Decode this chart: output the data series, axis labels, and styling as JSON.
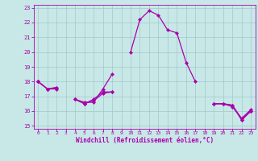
{
  "x_values": [
    0,
    1,
    2,
    3,
    4,
    5,
    6,
    7,
    8,
    9,
    10,
    11,
    12,
    13,
    14,
    15,
    16,
    17,
    18,
    19,
    20,
    21,
    22,
    23
  ],
  "line1": [
    18.0,
    17.5,
    17.6,
    null,
    16.8,
    16.6,
    16.6,
    17.5,
    18.5,
    null,
    20.0,
    22.2,
    22.8,
    22.5,
    21.5,
    21.3,
    19.3,
    18.0,
    null,
    16.5,
    16.5,
    16.4,
    15.4,
    16.0
  ],
  "line2": [
    18.0,
    17.5,
    17.6,
    null,
    16.8,
    16.5,
    16.8,
    17.3,
    17.3,
    null,
    null,
    null,
    null,
    null,
    null,
    null,
    null,
    null,
    null,
    16.5,
    16.5,
    16.4,
    15.5,
    16.1
  ],
  "line3": [
    18.0,
    17.5,
    17.5,
    null,
    16.8,
    16.5,
    16.7,
    17.2,
    17.3,
    null,
    null,
    null,
    null,
    null,
    null,
    null,
    null,
    null,
    null,
    16.5,
    16.5,
    16.3,
    15.5,
    16.0
  ],
  "line4": [
    18.0,
    null,
    null,
    null,
    null,
    16.5,
    null,
    null,
    null,
    null,
    null,
    null,
    null,
    null,
    null,
    null,
    null,
    null,
    null,
    null,
    null,
    null,
    15.4,
    16.0
  ],
  "xlabel": "Windchill (Refroidissement éolien,°C)",
  "xlim": [
    -0.5,
    23.5
  ],
  "ylim": [
    14.8,
    23.2
  ],
  "yticks": [
    15,
    16,
    17,
    18,
    19,
    20,
    21,
    22,
    23
  ],
  "xticks": [
    0,
    1,
    2,
    3,
    4,
    5,
    6,
    7,
    8,
    9,
    10,
    11,
    12,
    13,
    14,
    15,
    16,
    17,
    18,
    19,
    20,
    21,
    22,
    23
  ],
  "line_color": "#aa00aa",
  "bg_color": "#c8e8e8",
  "grid_color": "#a0c8c8",
  "markersize": 2.5
}
